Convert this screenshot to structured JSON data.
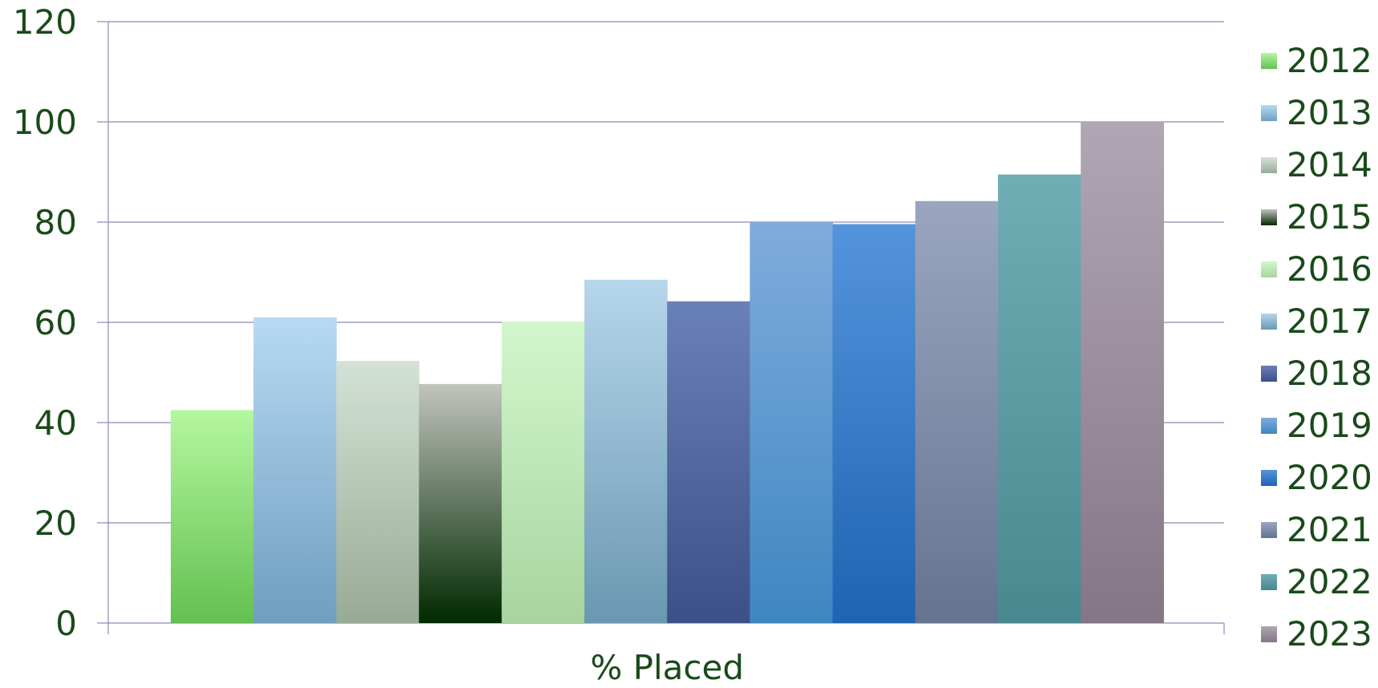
{
  "chart_data": {
    "type": "bar",
    "title": "",
    "xlabel": "",
    "ylabel": "",
    "categories": [
      "% Placed"
    ],
    "ylim": [
      0,
      120
    ],
    "yticks": [
      0,
      20,
      40,
      60,
      80,
      100,
      120
    ],
    "grid": true,
    "legend_position": "right",
    "text_color": "#1a4a1a",
    "series": [
      {
        "name": "2012",
        "values": [
          42.5
        ],
        "color_top": "#b4f7a0",
        "color_bottom": "#64c050"
      },
      {
        "name": "2013",
        "values": [
          61
        ],
        "color_top": "#b8daf2",
        "color_bottom": "#6e9ec0"
      },
      {
        "name": "2014",
        "values": [
          52.3
        ],
        "color_top": "#d3e2d6",
        "color_bottom": "#98ab96"
      },
      {
        "name": "2015",
        "values": [
          47.7
        ],
        "color_top": "#c2c4be",
        "color_bottom": "#002a00"
      },
      {
        "name": "2016",
        "values": [
          60.2
        ],
        "color_top": "#d2f6cc",
        "color_bottom": "#a8d4a0"
      },
      {
        "name": "2017",
        "values": [
          68.5
        ],
        "color_top": "#b6d6ec",
        "color_bottom": "#6a98b0"
      },
      {
        "name": "2018",
        "values": [
          64.2
        ],
        "color_top": "#6a80b8",
        "color_bottom": "#3c5088"
      },
      {
        "name": "2019",
        "values": [
          80
        ],
        "color_top": "#80acdc",
        "color_bottom": "#3e86c2"
      },
      {
        "name": "2020",
        "values": [
          79.6
        ],
        "color_top": "#5494dc",
        "color_bottom": "#1e64b2"
      },
      {
        "name": "2021",
        "values": [
          84.2
        ],
        "color_top": "#9aa6c0",
        "color_bottom": "#647490"
      },
      {
        "name": "2022",
        "values": [
          89.5
        ],
        "color_top": "#70aeb6",
        "color_bottom": "#4a8890"
      },
      {
        "name": "2023",
        "values": [
          100
        ],
        "color_top": "#b0a6b4",
        "color_bottom": "#857686"
      }
    ]
  }
}
